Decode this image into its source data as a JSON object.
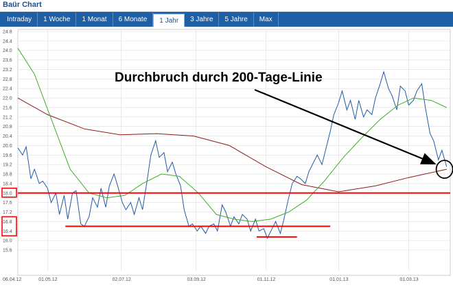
{
  "window": {
    "title": "Baür Chart"
  },
  "tabs": [
    {
      "label": "Intraday",
      "active": false
    },
    {
      "label": "1 Woche",
      "active": false
    },
    {
      "label": "1 Monat",
      "active": false
    },
    {
      "label": "6 Monate",
      "active": false
    },
    {
      "label": "1 Jahr",
      "active": true
    },
    {
      "label": "3 Jahre",
      "active": false
    },
    {
      "label": "5 Jahre",
      "active": false
    },
    {
      "label": "Max",
      "active": false
    }
  ],
  "colors": {
    "price": "#1f5aa6",
    "ma200": "#8b1a1a",
    "ma38": "#3fae2a",
    "annotation_red": "#ff0000",
    "grid": "#dddddd"
  },
  "chart_data": {
    "type": "line",
    "ylim": [
      15.6,
      24.8
    ],
    "yticks": [
      15.6,
      16.0,
      16.4,
      16.8,
      17.2,
      17.6,
      18.0,
      18.4,
      18.8,
      19.2,
      19.6,
      20.0,
      20.4,
      20.8,
      21.2,
      21.6,
      22.0,
      22.4,
      22.8,
      23.2,
      23.6,
      24.0,
      24.4,
      24.8
    ],
    "boxed_yticks": [
      16.4,
      16.8,
      18.0
    ],
    "xlim": [
      "2012-04-06",
      "2013-04-05"
    ],
    "xticks": [
      {
        "date": "2012-04-06",
        "label": "06.04.12"
      },
      {
        "date": "2012-05-01",
        "label": "01.05.12"
      },
      {
        "date": "2012-07-02",
        "label": "02.07.12"
      },
      {
        "date": "2012-09-03",
        "label": "03.09.12"
      },
      {
        "date": "2012-11-01",
        "label": "01.11.12"
      },
      {
        "date": "2013-01-01",
        "label": "01.01.13"
      },
      {
        "date": "2013-03-01",
        "label": "01.03.13"
      }
    ],
    "grid": true,
    "series": [
      {
        "key": "price",
        "style": "price",
        "points": [
          [
            "2012-04-06",
            19.9
          ],
          [
            "2012-04-10",
            19.6
          ],
          [
            "2012-04-13",
            19.95
          ],
          [
            "2012-04-17",
            18.6
          ],
          [
            "2012-04-20",
            19.0
          ],
          [
            "2012-04-24",
            18.4
          ],
          [
            "2012-04-27",
            18.5
          ],
          [
            "2012-05-01",
            18.2
          ],
          [
            "2012-05-04",
            17.6
          ],
          [
            "2012-05-08",
            18.0
          ],
          [
            "2012-05-11",
            17.1
          ],
          [
            "2012-05-15",
            17.9
          ],
          [
            "2012-05-18",
            16.9
          ],
          [
            "2012-05-22",
            18.0
          ],
          [
            "2012-05-25",
            18.1
          ],
          [
            "2012-05-29",
            16.7
          ],
          [
            "2012-06-01",
            16.6
          ],
          [
            "2012-06-05",
            17.0
          ],
          [
            "2012-06-08",
            17.8
          ],
          [
            "2012-06-12",
            17.4
          ],
          [
            "2012-06-15",
            18.2
          ],
          [
            "2012-06-19",
            17.4
          ],
          [
            "2012-06-22",
            18.3
          ],
          [
            "2012-06-26",
            18.8
          ],
          [
            "2012-06-29",
            18.3
          ],
          [
            "2012-07-03",
            17.6
          ],
          [
            "2012-07-06",
            17.3
          ],
          [
            "2012-07-10",
            17.6
          ],
          [
            "2012-07-13",
            17.1
          ],
          [
            "2012-07-17",
            17.8
          ],
          [
            "2012-07-20",
            17.3
          ],
          [
            "2012-07-24",
            18.6
          ],
          [
            "2012-07-27",
            19.6
          ],
          [
            "2012-07-31",
            20.2
          ],
          [
            "2012-08-03",
            19.5
          ],
          [
            "2012-08-07",
            19.7
          ],
          [
            "2012-08-10",
            18.9
          ],
          [
            "2012-08-14",
            19.3
          ],
          [
            "2012-08-17",
            18.8
          ],
          [
            "2012-08-21",
            18.3
          ],
          [
            "2012-08-24",
            17.3
          ],
          [
            "2012-08-28",
            16.6
          ],
          [
            "2012-08-31",
            16.7
          ],
          [
            "2012-09-04",
            16.4
          ],
          [
            "2012-09-07",
            16.6
          ],
          [
            "2012-09-11",
            16.3
          ],
          [
            "2012-09-14",
            16.6
          ],
          [
            "2012-09-18",
            16.7
          ],
          [
            "2012-09-21",
            16.4
          ],
          [
            "2012-09-25",
            17.5
          ],
          [
            "2012-09-28",
            17.2
          ],
          [
            "2012-10-02",
            16.6
          ],
          [
            "2012-10-05",
            17.0
          ],
          [
            "2012-10-09",
            16.7
          ],
          [
            "2012-10-12",
            17.1
          ],
          [
            "2012-10-16",
            16.9
          ],
          [
            "2012-10-19",
            16.4
          ],
          [
            "2012-10-23",
            16.9
          ],
          [
            "2012-10-26",
            16.4
          ],
          [
            "2012-10-30",
            16.5
          ],
          [
            "2012-11-02",
            16.1
          ],
          [
            "2012-11-06",
            16.5
          ],
          [
            "2012-11-09",
            16.8
          ],
          [
            "2012-11-13",
            16.3
          ],
          [
            "2012-11-16",
            16.9
          ],
          [
            "2012-11-20",
            17.8
          ],
          [
            "2012-11-23",
            18.4
          ],
          [
            "2012-11-27",
            18.7
          ],
          [
            "2012-11-30",
            18.6
          ],
          [
            "2012-12-04",
            18.4
          ],
          [
            "2012-12-07",
            18.9
          ],
          [
            "2012-12-11",
            19.3
          ],
          [
            "2012-12-14",
            19.6
          ],
          [
            "2012-12-18",
            19.2
          ],
          [
            "2012-12-21",
            19.8
          ],
          [
            "2012-12-25",
            20.6
          ],
          [
            "2012-12-28",
            21.3
          ],
          [
            "2013-01-01",
            21.8
          ],
          [
            "2013-01-04",
            22.3
          ],
          [
            "2013-01-08",
            21.5
          ],
          [
            "2013-01-11",
            21.9
          ],
          [
            "2013-01-15",
            21.1
          ],
          [
            "2013-01-18",
            21.9
          ],
          [
            "2013-01-22",
            21.2
          ],
          [
            "2013-01-25",
            21.5
          ],
          [
            "2013-01-29",
            21.3
          ],
          [
            "2013-02-01",
            22.0
          ],
          [
            "2013-02-05",
            22.6
          ],
          [
            "2013-02-08",
            23.1
          ],
          [
            "2013-02-12",
            22.4
          ],
          [
            "2013-02-15",
            22.1
          ],
          [
            "2013-02-19",
            21.5
          ],
          [
            "2013-02-22",
            22.5
          ],
          [
            "2013-02-26",
            22.3
          ],
          [
            "2013-03-01",
            21.7
          ],
          [
            "2013-03-05",
            21.9
          ],
          [
            "2013-03-08",
            22.3
          ],
          [
            "2013-03-12",
            22.6
          ],
          [
            "2013-03-15",
            21.6
          ],
          [
            "2013-03-19",
            20.5
          ],
          [
            "2013-03-22",
            20.2
          ],
          [
            "2013-03-26",
            19.4
          ],
          [
            "2013-03-29",
            19.8
          ],
          [
            "2013-04-02",
            19.1
          ]
        ]
      },
      {
        "key": "ma200",
        "style": "ma200",
        "points": [
          [
            "2012-04-06",
            22.0
          ],
          [
            "2012-05-01",
            21.3
          ],
          [
            "2012-06-01",
            20.7
          ],
          [
            "2012-07-01",
            20.45
          ],
          [
            "2012-08-01",
            20.5
          ],
          [
            "2012-09-01",
            20.4
          ],
          [
            "2012-10-01",
            20.0
          ],
          [
            "2012-11-01",
            19.1
          ],
          [
            "2012-12-01",
            18.35
          ],
          [
            "2013-01-01",
            18.05
          ],
          [
            "2013-02-01",
            18.3
          ],
          [
            "2013-03-01",
            18.65
          ],
          [
            "2013-04-02",
            19.0
          ]
        ]
      },
      {
        "key": "ma38",
        "style": "ma38",
        "points": [
          [
            "2012-04-06",
            24.1
          ],
          [
            "2012-04-20",
            23.0
          ],
          [
            "2012-05-05",
            21.0
          ],
          [
            "2012-05-20",
            19.0
          ],
          [
            "2012-06-05",
            18.0
          ],
          [
            "2012-06-20",
            17.8
          ],
          [
            "2012-07-05",
            17.9
          ],
          [
            "2012-07-20",
            18.4
          ],
          [
            "2012-08-05",
            18.8
          ],
          [
            "2012-08-20",
            18.7
          ],
          [
            "2012-09-05",
            18.0
          ],
          [
            "2012-09-20",
            17.1
          ],
          [
            "2012-10-05",
            16.9
          ],
          [
            "2012-10-20",
            16.8
          ],
          [
            "2012-11-05",
            16.9
          ],
          [
            "2012-11-20",
            17.2
          ],
          [
            "2012-12-05",
            17.7
          ],
          [
            "2012-12-20",
            18.5
          ],
          [
            "2013-01-05",
            19.5
          ],
          [
            "2013-01-20",
            20.3
          ],
          [
            "2013-02-05",
            21.1
          ],
          [
            "2013-02-20",
            21.7
          ],
          [
            "2013-03-05",
            22.0
          ],
          [
            "2013-03-20",
            21.9
          ],
          [
            "2013-04-02",
            21.6
          ]
        ]
      }
    ],
    "annotations": {
      "text": "Durchbruch durch 200-Tage-Linie",
      "hlines": [
        {
          "y": 18.0,
          "from": "2012-04-06",
          "to": "2013-04-05"
        },
        {
          "y": 16.6,
          "from": "2012-05-16",
          "to": "2012-12-25"
        },
        {
          "y": 16.15,
          "from": "2012-10-24",
          "to": "2012-11-27"
        }
      ],
      "arrow_to": [
        "2013-03-30",
        19.0
      ]
    }
  }
}
